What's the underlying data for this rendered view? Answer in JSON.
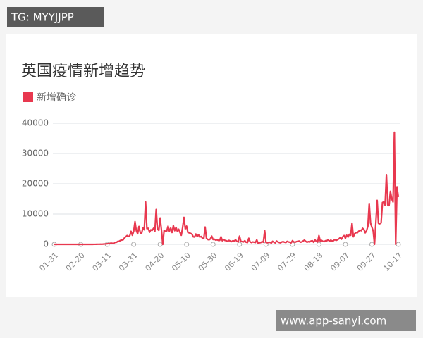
{
  "watermark_top": "TG: MYYJJPP",
  "watermark_bottom": "www.app-sanyi.com",
  "chart_data": {
    "type": "line",
    "title": "英国疫情新增趋势",
    "legend": "top-left",
    "grid": true,
    "ylim": [
      0,
      40000
    ],
    "yticks": [
      0,
      10000,
      20000,
      30000,
      40000
    ],
    "categories": [
      "01-31",
      null,
      null,
      null,
      null,
      null,
      null,
      null,
      null,
      null,
      null,
      null,
      null,
      null,
      null,
      null,
      null,
      null,
      null,
      null,
      "02-20",
      null,
      null,
      null,
      null,
      null,
      null,
      null,
      null,
      null,
      null,
      null,
      null,
      null,
      null,
      null,
      null,
      null,
      null,
      null,
      "03-11",
      null,
      null,
      null,
      null,
      null,
      null,
      null,
      null,
      null,
      null,
      null,
      null,
      null,
      null,
      null,
      null,
      null,
      null,
      null,
      "03-31",
      null,
      null,
      null,
      null,
      null,
      null,
      null,
      null,
      null,
      null,
      null,
      null,
      null,
      null,
      null,
      null,
      null,
      null,
      null,
      "04-20",
      null,
      null,
      null,
      null,
      null,
      null,
      null,
      null,
      null,
      null,
      null,
      null,
      null,
      null,
      null,
      null,
      null,
      null,
      null,
      "05-10",
      null,
      null,
      null,
      null,
      null,
      null,
      null,
      null,
      null,
      null,
      null,
      null,
      null,
      null,
      null,
      null,
      null,
      null,
      null,
      "05-30",
      null,
      null,
      null,
      null,
      null,
      null,
      null,
      null,
      null,
      null,
      null,
      null,
      null,
      null,
      null,
      null,
      null,
      null,
      null,
      "06-19",
      null,
      null,
      null,
      null,
      null,
      null,
      null,
      null,
      null,
      null,
      null,
      null,
      null,
      null,
      null,
      null,
      null,
      null,
      null,
      "07-09",
      null,
      null,
      null,
      null,
      null,
      null,
      null,
      null,
      null,
      null,
      null,
      null,
      null,
      null,
      null,
      null,
      null,
      null,
      null,
      "07-29",
      null,
      null,
      null,
      null,
      null,
      null,
      null,
      null,
      null,
      null,
      null,
      null,
      null,
      null,
      null,
      null,
      null,
      null,
      null,
      "08-18",
      null,
      null,
      null,
      null,
      null,
      null,
      null,
      null,
      null,
      null,
      null,
      null,
      null,
      null,
      null,
      null,
      null,
      null,
      null,
      "09-07",
      null,
      null,
      null,
      null,
      null,
      null,
      null,
      null,
      null,
      null,
      null,
      null,
      null,
      null,
      null,
      null,
      null,
      null,
      null,
      "09-27",
      null,
      null,
      null,
      null,
      null,
      null,
      null,
      null,
      null,
      null,
      null,
      null,
      null,
      null,
      null,
      null,
      null,
      null,
      null,
      "10-17"
    ],
    "series": [
      {
        "name": "新增确诊",
        "color": "#e8384f",
        "values": [
          0,
          0,
          0,
          0,
          0,
          0,
          0,
          0,
          0,
          0,
          0,
          0,
          0,
          0,
          0,
          0,
          0,
          0,
          0,
          0,
          0,
          0,
          0,
          0,
          5,
          0,
          10,
          0,
          10,
          5,
          15,
          10,
          30,
          40,
          50,
          60,
          50,
          90,
          130,
          150,
          200,
          250,
          330,
          410,
          340,
          400,
          650,
          680,
          1000,
          1000,
          1300,
          1400,
          1500,
          2100,
          2500,
          2900,
          2600,
          2800,
          4300,
          3000,
          4300,
          7500,
          4500,
          3500,
          5900,
          3800,
          3600,
          5500,
          4800,
          14000,
          5200,
          5300,
          4000,
          4800,
          4600,
          5300,
          4300,
          11500,
          5000,
          4600,
          8700,
          4700,
          0,
          4600,
          4300,
          4400,
          6000,
          4300,
          5400,
          3900,
          6200,
          4500,
          5600,
          4300,
          5000,
          3900,
          3000,
          5600,
          8900,
          5100,
          6000,
          3900,
          3800,
          3600,
          3400,
          2500,
          2400,
          3400,
          2600,
          3200,
          2400,
          2600,
          2000,
          1900,
          5700,
          2000,
          1600,
          1500,
          1800,
          2700,
          1600,
          1700,
          1400,
          1500,
          1300,
          1300,
          2500,
          1200,
          1600,
          1300,
          1200,
          1000,
          1300,
          1100,
          900,
          1200,
          1100,
          1500,
          1000,
          800,
          2700,
          1000,
          900,
          800,
          1200,
          700,
          600,
          2000,
          800,
          600,
          800,
          700,
          600,
          1500,
          400,
          500,
          600,
          900,
          700,
          4500,
          600,
          550,
          650,
          700,
          400,
          1000,
          700,
          500,
          1100,
          800,
          600,
          500,
          800,
          900,
          700,
          600,
          1000,
          800,
          700,
          500,
          1200,
          800,
          700,
          900,
          1000,
          1100,
          700,
          800,
          1100,
          1400,
          1000,
          700,
          900,
          800,
          1100,
          1200,
          700,
          1500,
          1000,
          800,
          2900,
          1100,
          1300,
          1000,
          900,
          1200,
          1200,
          1500,
          1000,
          1400,
          1100,
          1200,
          1600,
          1300,
          1500,
          1800,
          2200,
          1700,
          2500,
          2900,
          2000,
          3000,
          2400,
          3300,
          3000,
          7000,
          2500,
          3500,
          3900,
          3800,
          4300,
          4700,
          4500,
          5300,
          4900,
          3800,
          4500,
          6000,
          13500,
          7000,
          5700,
          4400,
          0,
          7100,
          14500,
          6900,
          6800,
          7100,
          13800,
          14000,
          12900,
          23000,
          13000,
          12800,
          17500,
          15000,
          14000,
          37000,
          0,
          19000,
          15600
        ]
      }
    ]
  }
}
